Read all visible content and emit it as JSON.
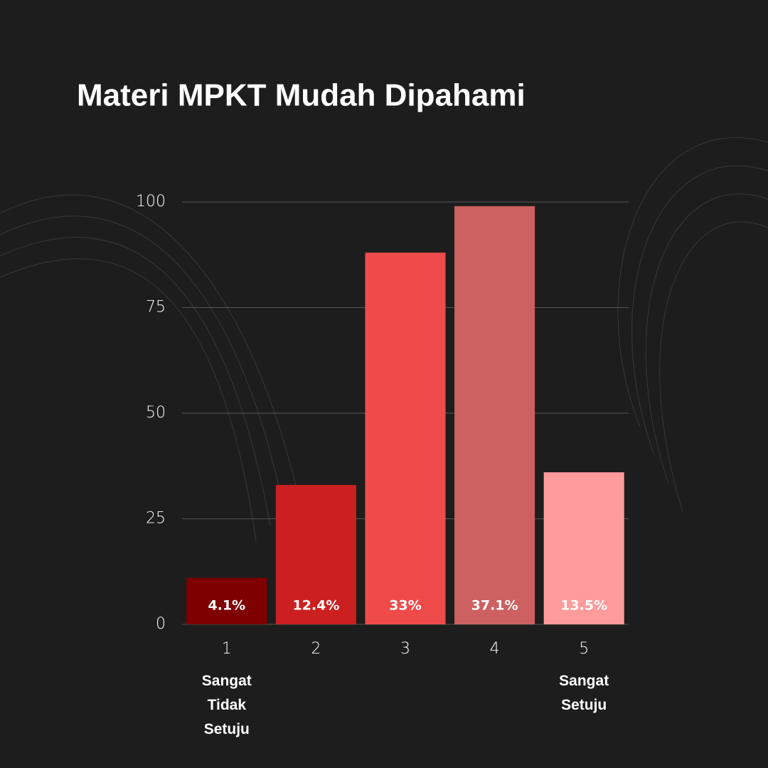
{
  "chart_data": {
    "type": "bar",
    "title": "Materi MPKT Mudah Dipahami",
    "categories": [
      "1",
      "2",
      "3",
      "4",
      "5"
    ],
    "category_notes": [
      "Sangat Tidak Setuju",
      null,
      null,
      null,
      "Sangat Setuju"
    ],
    "values": [
      11,
      33,
      88,
      99,
      36
    ],
    "percent_labels": [
      "4.1%",
      "12.4%",
      "33%",
      "37.1%",
      "13.5%"
    ],
    "colors": [
      "#7e0000",
      "#cc2020",
      "#ef4b4b",
      "#cd6060",
      "#ff9b9b"
    ],
    "ylim": [
      0,
      100
    ],
    "yticks": [
      0,
      25,
      50,
      75,
      100
    ],
    "grid": true
  }
}
